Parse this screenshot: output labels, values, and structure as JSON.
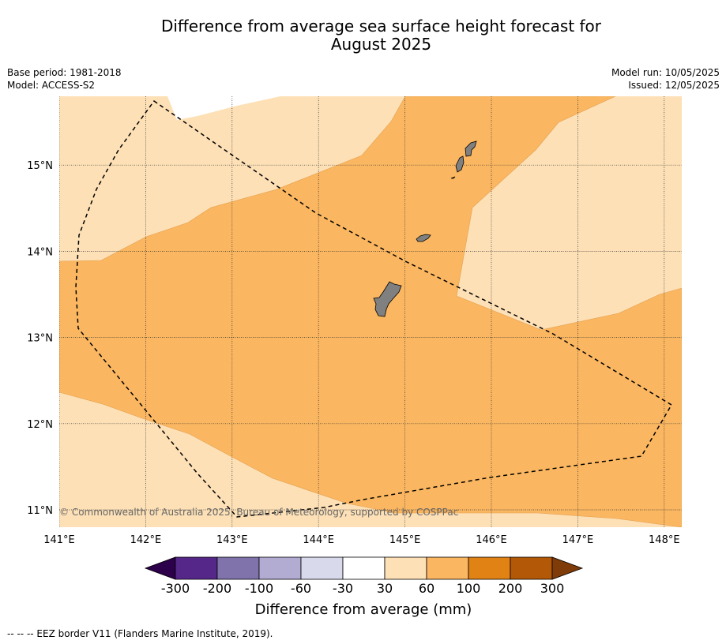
{
  "title_line1": "Difference from average sea surface height forecast for",
  "title_line2": "August 2025",
  "base_period": "Base period: 1981-2018",
  "model": "Model: ACCESS-S2",
  "model_run": "Model run: 10/05/2025",
  "issued": "Issued: 12/05/2025",
  "copyright": "© Commonwealth of Australia 2025, Bureau of Meteorology, supported by COSPPac",
  "footnote": "--  --  -- EEZ border V11 (Flanders Marine Institute, 2019).",
  "chart_data": {
    "type": "heatmap",
    "title": "Difference from average sea surface height forecast for August 2025",
    "xlabel": "",
    "ylabel": "",
    "xlim": [
      141,
      148.2
    ],
    "ylim": [
      10.8,
      15.8
    ],
    "x_tick_labels": [
      "141°E",
      "142°E",
      "143°E",
      "144°E",
      "145°E",
      "146°E",
      "147°E",
      "148°E"
    ],
    "x_ticks": [
      141,
      142,
      143,
      144,
      145,
      146,
      147,
      148
    ],
    "y_tick_labels": [
      "11°N",
      "12°N",
      "13°N",
      "14°N",
      "15°N"
    ],
    "y_ticks": [
      11,
      12,
      13,
      14,
      15
    ],
    "grid": true,
    "colorbar": {
      "label": "Difference from average (mm)",
      "tick_labels": [
        "-300",
        "-200",
        "-100",
        "-60",
        "-30",
        "30",
        "60",
        "100",
        "200",
        "300"
      ],
      "bins": [
        {
          "range": "< -300",
          "color": "#2d004b"
        },
        {
          "range": "-300 to -200",
          "color": "#542788"
        },
        {
          "range": "-200 to -100",
          "color": "#8073ac"
        },
        {
          "range": "-100 to -60",
          "color": "#b2abd2"
        },
        {
          "range": "-60 to -30",
          "color": "#d8daeb"
        },
        {
          "range": "-30 to 30",
          "color": "#ffffff"
        },
        {
          "range": "30 to 60",
          "color": "#fde0b6"
        },
        {
          "range": "60 to 100",
          "color": "#fab660"
        },
        {
          "range": "100 to 200",
          "color": "#e08214"
        },
        {
          "range": "200 to 300",
          "color": "#b35806"
        },
        {
          "range": "> 300",
          "color": "#7f3b08"
        }
      ]
    },
    "regions": [
      {
        "category": "-30 to 30",
        "color": "#ffffff",
        "description": "small area at the top edge near 142.3-143.6°E"
      },
      {
        "category": "30 to 60",
        "color": "#fde0b6",
        "description": "northwest, east and south margins"
      },
      {
        "category": "60 to 100",
        "color": "#fab660",
        "description": "central band covering most of the region"
      }
    ],
    "eez_border": "dashed black line",
    "land_color": "#808080"
  }
}
